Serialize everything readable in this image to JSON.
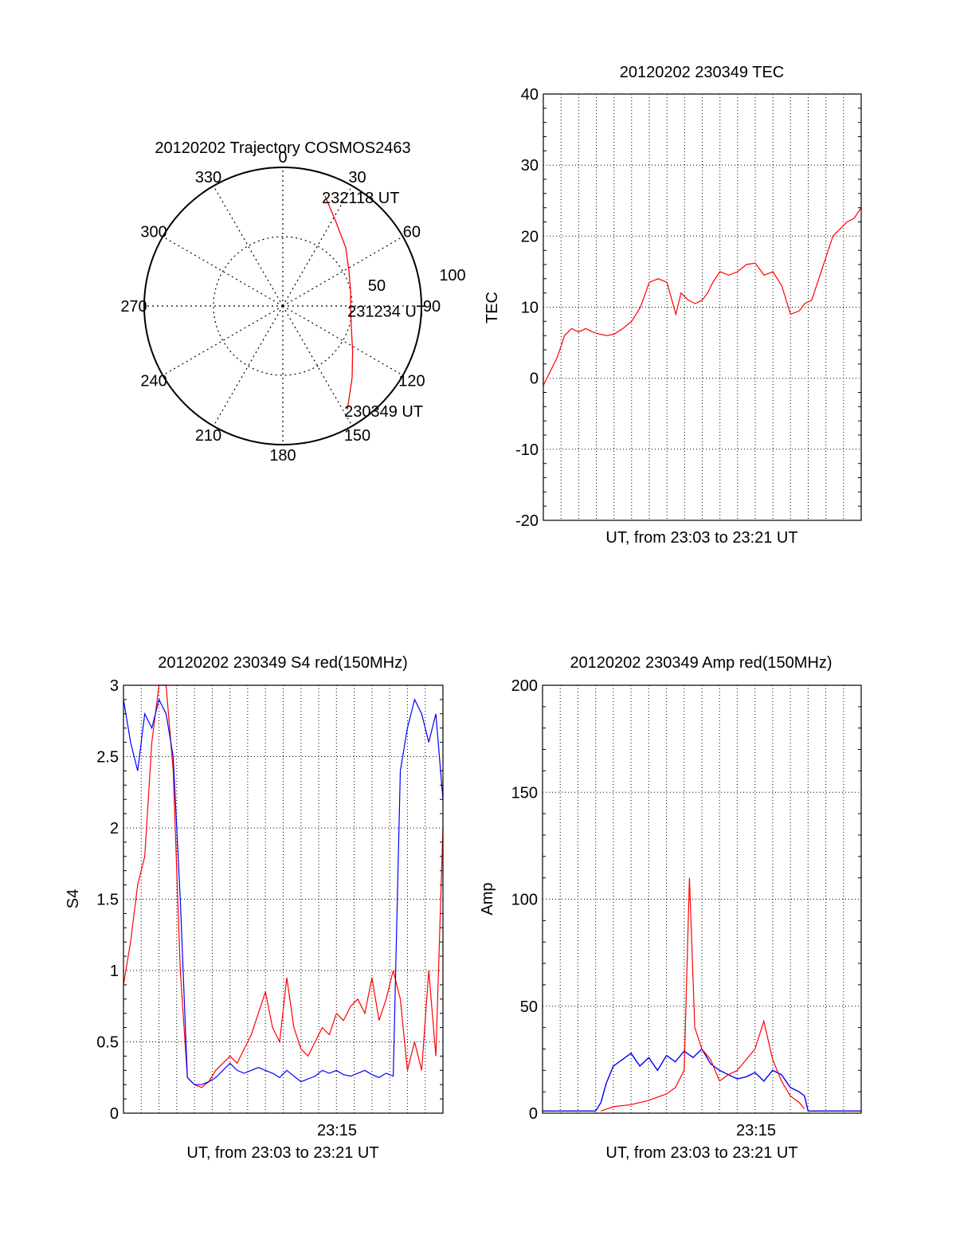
{
  "chart_data": [
    {
      "id": "trajectory",
      "type": "polar",
      "title": "20120202 Trajectory COSMOS2463",
      "azimuth_labels": [
        "0",
        "30",
        "60",
        "90",
        "120",
        "150",
        "180",
        "210",
        "240",
        "270",
        "300",
        "330"
      ],
      "radial_labels": [
        "50",
        "100"
      ],
      "radial_max": 100,
      "grid": true,
      "series": [
        {
          "color": "#ff0000",
          "points": [
            {
              "az": 21,
              "r": 85
            },
            {
              "az": 32,
              "r": 72
            },
            {
              "az": 47,
              "r": 62
            },
            {
              "az": 62,
              "r": 54
            },
            {
              "az": 78,
              "r": 50
            },
            {
              "az": 93,
              "r": 49
            },
            {
              "az": 108,
              "r": 52
            },
            {
              "az": 123,
              "r": 60
            },
            {
              "az": 136,
              "r": 72
            },
            {
              "az": 148,
              "r": 88
            }
          ]
        }
      ],
      "annotations": [
        {
          "text": "232118 UT",
          "az": 21,
          "r": 85
        },
        {
          "text": "231234 UT",
          "az": 93,
          "r": 49
        },
        {
          "text": "230349 UT",
          "az": 148,
          "r": 88
        }
      ]
    },
    {
      "id": "tec",
      "type": "line",
      "title": "20120202 230349 TEC",
      "xlabel": "UT, from 23:03 to 23:21 UT",
      "ylabel": "TEC",
      "ylim": [
        -20,
        40
      ],
      "yticks": [
        "-20",
        "-10",
        "0",
        "10",
        "20",
        "30",
        "40"
      ],
      "grid": true,
      "series": [
        {
          "color": "#ff0000",
          "x": [
            0.0,
            0.4,
            0.8,
            1.2,
            1.6,
            2.0,
            2.4,
            2.8,
            3.2,
            3.6,
            4.0,
            4.5,
            5.0,
            5.5,
            6.0,
            6.5,
            7.0,
            7.5,
            7.8,
            8.2,
            8.6,
            9.0,
            9.3,
            9.6,
            10.0,
            10.5,
            11.0,
            11.5,
            12.0,
            12.5,
            13.0,
            13.5,
            14.0,
            14.5,
            14.8,
            15.2,
            15.6,
            16.0,
            16.4,
            16.8,
            17.2,
            17.6,
            18.0
          ],
          "y": [
            -1,
            1,
            3,
            6,
            7,
            6.5,
            7,
            6.5,
            6.2,
            6,
            6.2,
            7,
            8,
            10,
            13.5,
            14,
            13.5,
            9,
            12,
            11,
            10.5,
            11,
            12,
            13.5,
            15,
            14.5,
            15,
            16,
            16.2,
            14.5,
            15,
            13,
            9,
            9.5,
            10.5,
            11,
            14,
            17,
            20,
            21,
            22,
            22.5,
            24
          ]
        }
      ]
    },
    {
      "id": "s4",
      "type": "line",
      "title": "20120202 230349 S4 red(150MHz)",
      "xlabel": "UT, from 23:03 to 23:21 UT",
      "ylabel": "S4",
      "ylim": [
        0,
        3
      ],
      "yticks": [
        "0",
        "0.5",
        "1",
        "1.5",
        "2",
        "2.5",
        "3"
      ],
      "xtick_label": "23:15",
      "grid": true,
      "series": [
        {
          "color": "#ff0000",
          "x": [
            0.0,
            0.4,
            0.8,
            1.2,
            1.6,
            2.0,
            2.4,
            2.8,
            3.2,
            3.6,
            4.0,
            4.4,
            4.8,
            5.2,
            5.6,
            6.0,
            6.4,
            6.8,
            7.2,
            7.6,
            8.0,
            8.4,
            8.8,
            9.2,
            9.6,
            10.0,
            10.4,
            10.8,
            11.2,
            11.6,
            12.0,
            12.4,
            12.8,
            13.2,
            13.6,
            14.0,
            14.4,
            14.8,
            15.2,
            15.6,
            16.0,
            16.4,
            16.8,
            17.2,
            17.6,
            18.0
          ],
          "y": [
            0.9,
            1.2,
            1.6,
            1.8,
            2.6,
            3.0,
            3.0,
            2.4,
            1.0,
            0.25,
            0.2,
            0.18,
            0.22,
            0.3,
            0.35,
            0.4,
            0.35,
            0.45,
            0.55,
            0.7,
            0.85,
            0.6,
            0.5,
            0.95,
            0.6,
            0.45,
            0.4,
            0.5,
            0.6,
            0.55,
            0.7,
            0.65,
            0.75,
            0.8,
            0.7,
            0.95,
            0.65,
            0.8,
            1.0,
            0.8,
            0.3,
            0.5,
            0.3,
            1.0,
            0.4,
            2.0
          ]
        },
        {
          "color": "#0000ff",
          "x": [
            0.0,
            0.4,
            0.8,
            1.2,
            1.6,
            2.0,
            2.4,
            2.8,
            3.2,
            3.6,
            4.0,
            4.4,
            4.8,
            5.2,
            5.6,
            6.0,
            6.4,
            6.8,
            7.2,
            7.6,
            8.0,
            8.4,
            8.8,
            9.2,
            9.6,
            10.0,
            10.4,
            10.8,
            11.2,
            11.6,
            12.0,
            12.4,
            12.8,
            13.2,
            13.6,
            14.0,
            14.4,
            14.8,
            15.2,
            15.6,
            16.0,
            16.4,
            16.8,
            17.2,
            17.6,
            18.0
          ],
          "y": [
            2.9,
            2.6,
            2.4,
            2.8,
            2.7,
            2.9,
            2.8,
            2.5,
            1.5,
            0.25,
            0.2,
            0.2,
            0.22,
            0.25,
            0.3,
            0.35,
            0.3,
            0.28,
            0.3,
            0.32,
            0.3,
            0.28,
            0.25,
            0.3,
            0.26,
            0.22,
            0.24,
            0.26,
            0.3,
            0.28,
            0.3,
            0.27,
            0.26,
            0.28,
            0.3,
            0.27,
            0.25,
            0.28,
            0.26,
            2.4,
            2.7,
            2.9,
            2.8,
            2.6,
            2.8,
            2.2
          ]
        }
      ]
    },
    {
      "id": "amp",
      "type": "line",
      "title": "20120202 230349 Amp red(150MHz)",
      "xlabel": "UT, from 23:03 to 23:21 UT",
      "ylabel": "Amp",
      "ylim": [
        0,
        200
      ],
      "yticks": [
        "0",
        "50",
        "100",
        "150",
        "200"
      ],
      "xtick_label": "23:15",
      "grid": true,
      "series": [
        {
          "color": "#0000ff",
          "x": [
            0.0,
            1.0,
            2.0,
            3.0,
            3.3,
            3.6,
            4.0,
            4.5,
            5.0,
            5.5,
            6.0,
            6.5,
            7.0,
            7.5,
            8.0,
            8.5,
            9.0,
            9.5,
            10.0,
            10.5,
            11.0,
            11.5,
            12.0,
            12.5,
            13.0,
            13.5,
            14.0,
            14.5,
            14.8,
            15.0,
            16.0,
            17.0,
            18.0
          ],
          "y": [
            1,
            1,
            1,
            1,
            5,
            14,
            22,
            25,
            28,
            22,
            26,
            20,
            27,
            24,
            29,
            26,
            30,
            23,
            20,
            18,
            16,
            17,
            19,
            15,
            20,
            18,
            12,
            10,
            8,
            1,
            1,
            1,
            1
          ]
        },
        {
          "color": "#ff0000",
          "x": [
            3.3,
            4.0,
            5.0,
            6.0,
            7.0,
            7.5,
            8.0,
            8.3,
            8.6,
            9.0,
            9.5,
            10.0,
            10.5,
            11.0,
            11.5,
            12.0,
            12.5,
            13.0,
            13.5,
            14.0,
            14.5,
            14.8
          ],
          "y": [
            1,
            3,
            4,
            6,
            9,
            12,
            20,
            110,
            40,
            30,
            25,
            15,
            18,
            20,
            25,
            30,
            43,
            25,
            15,
            8,
            5,
            2
          ]
        }
      ]
    }
  ]
}
